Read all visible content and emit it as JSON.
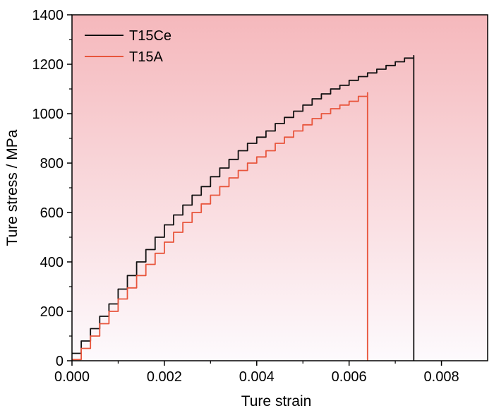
{
  "chart_data": {
    "type": "line",
    "xlabel": "Ture strain",
    "ylabel": "Ture stress / MPa",
    "xlim": [
      0,
      0.009
    ],
    "ylim": [
      0,
      1400
    ],
    "xticks": [
      0,
      0.002,
      0.004,
      0.006,
      0.008
    ],
    "xtick_labels": [
      "0.000",
      "0.002",
      "0.004",
      "0.006",
      "0.008"
    ],
    "yticks": [
      0,
      200,
      400,
      600,
      800,
      1000,
      1200,
      1400
    ],
    "ytick_labels": [
      "0",
      "200",
      "400",
      "600",
      "800",
      "1000",
      "1200",
      "1400"
    ],
    "background_gradient": {
      "top": "#f5b8bc",
      "bottom": "#fdfafd"
    },
    "legend_position": "top-left",
    "series": [
      {
        "name": "T15Ce",
        "color": "#111111",
        "x": [
          0,
          0.0002,
          0.0004,
          0.0006,
          0.0008,
          0.001,
          0.0012,
          0.0014,
          0.0016,
          0.0018,
          0.002,
          0.0022,
          0.0024,
          0.0026,
          0.0028,
          0.003,
          0.0032,
          0.0034,
          0.0036,
          0.0038,
          0.004,
          0.0042,
          0.0044,
          0.0046,
          0.0048,
          0.005,
          0.0052,
          0.0054,
          0.0056,
          0.0058,
          0.006,
          0.0062,
          0.0064,
          0.0066,
          0.0068,
          0.007,
          0.0072,
          0.0074,
          0.0074
        ],
        "y": [
          30,
          80,
          130,
          180,
          230,
          290,
          345,
          400,
          450,
          500,
          550,
          590,
          630,
          670,
          705,
          745,
          780,
          815,
          850,
          880,
          905,
          930,
          960,
          985,
          1010,
          1035,
          1060,
          1080,
          1100,
          1115,
          1135,
          1150,
          1165,
          1180,
          1195,
          1210,
          1225,
          1235,
          0
        ]
      },
      {
        "name": "T15A",
        "color": "#e8553c",
        "x": [
          0,
          0.0002,
          0.0004,
          0.0006,
          0.0008,
          0.001,
          0.0012,
          0.0014,
          0.0016,
          0.0018,
          0.002,
          0.0022,
          0.0024,
          0.0026,
          0.0028,
          0.003,
          0.0032,
          0.0034,
          0.0036,
          0.0038,
          0.004,
          0.0042,
          0.0044,
          0.0046,
          0.0048,
          0.005,
          0.0052,
          0.0054,
          0.0056,
          0.0058,
          0.006,
          0.0062,
          0.0064,
          0.0064
        ],
        "y": [
          5,
          50,
          100,
          150,
          200,
          250,
          295,
          345,
          390,
          435,
          480,
          520,
          560,
          600,
          635,
          670,
          705,
          740,
          770,
          800,
          825,
          850,
          880,
          905,
          930,
          955,
          980,
          1000,
          1020,
          1035,
          1050,
          1070,
          1085,
          0
        ]
      }
    ]
  }
}
